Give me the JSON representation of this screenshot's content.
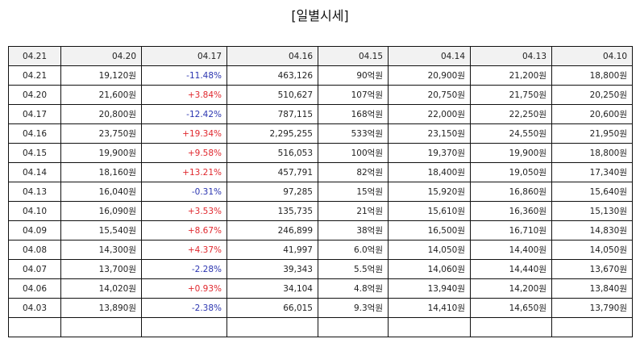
{
  "title": "[일별시세]",
  "table": {
    "header": [
      "04.21",
      "04.20",
      "04.17",
      "04.16",
      "04.15",
      "04.14",
      "04.13",
      "04.10"
    ],
    "up_color": "#e0282e",
    "down_color": "#2b35b0",
    "rows": [
      [
        "04.21",
        "19,120원",
        "-11.48%",
        "463,126",
        "90억원",
        "20,900원",
        "21,200원",
        "18,800원"
      ],
      [
        "04.20",
        "21,600원",
        "+3.84%",
        "510,627",
        "107억원",
        "20,750원",
        "21,750원",
        "20,250원"
      ],
      [
        "04.17",
        "20,800원",
        "-12.42%",
        "787,115",
        "168억원",
        "22,000원",
        "22,250원",
        "20,600원"
      ],
      [
        "04.16",
        "23,750원",
        "+19.34%",
        "2,295,255",
        "533억원",
        "23,150원",
        "24,550원",
        "21,950원"
      ],
      [
        "04.15",
        "19,900원",
        "+9.58%",
        "516,053",
        "100억원",
        "19,370원",
        "19,900원",
        "18,800원"
      ],
      [
        "04.14",
        "18,160원",
        "+13.21%",
        "457,791",
        "82억원",
        "18,400원",
        "19,050원",
        "17,340원"
      ],
      [
        "04.13",
        "16,040원",
        "-0.31%",
        "97,285",
        "15억원",
        "15,920원",
        "16,860원",
        "15,640원"
      ],
      [
        "04.10",
        "16,090원",
        "+3.53%",
        "135,735",
        "21억원",
        "15,610원",
        "16,360원",
        "15,130원"
      ],
      [
        "04.09",
        "15,540원",
        "+8.67%",
        "246,899",
        "38억원",
        "16,500원",
        "16,710원",
        "14,830원"
      ],
      [
        "04.08",
        "14,300원",
        "+4.37%",
        "41,997",
        "6.0억원",
        "14,050원",
        "14,400원",
        "14,050원"
      ],
      [
        "04.07",
        "13,700원",
        "-2.28%",
        "39,343",
        "5.5억원",
        "14,060원",
        "14,440원",
        "13,670원"
      ],
      [
        "04.06",
        "14,020원",
        "+0.93%",
        "34,104",
        "4.8억원",
        "13,940원",
        "14,200원",
        "13,840원"
      ],
      [
        "04.03",
        "13,890원",
        "-2.38%",
        "66,015",
        "9.3억원",
        "14,410원",
        "14,650원",
        "13,790원"
      ]
    ]
  }
}
